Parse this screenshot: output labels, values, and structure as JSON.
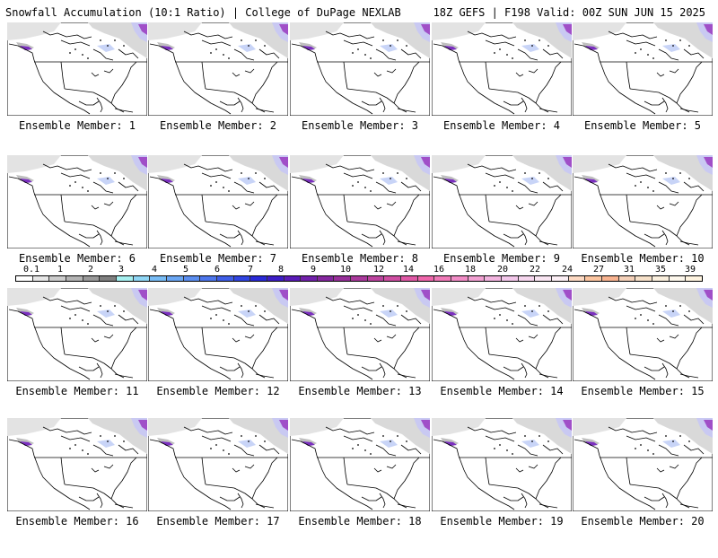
{
  "header": {
    "left_text": "Snowfall Accumulation (10:1 Ratio) | College of DuPage NEXLAB",
    "right_text": "18Z GEFS | F198 Valid: 00Z SUN JUN 15 2025"
  },
  "panels": [
    {
      "label": "Ensemble Member: 1"
    },
    {
      "label": "Ensemble Member: 2"
    },
    {
      "label": "Ensemble Member: 3"
    },
    {
      "label": "Ensemble Member: 4"
    },
    {
      "label": "Ensemble Member: 5"
    },
    {
      "label": "Ensemble Member: 6"
    },
    {
      "label": "Ensemble Member: 7"
    },
    {
      "label": "Ensemble Member: 8"
    },
    {
      "label": "Ensemble Member: 9"
    },
    {
      "label": "Ensemble Member: 10"
    },
    {
      "label": "Ensemble Member: 11"
    },
    {
      "label": "Ensemble Member: 12"
    },
    {
      "label": "Ensemble Member: 13"
    },
    {
      "label": "Ensemble Member: 14"
    },
    {
      "label": "Ensemble Member: 15"
    },
    {
      "label": "Ensemble Member: 16"
    },
    {
      "label": "Ensemble Member: 17"
    },
    {
      "label": "Ensemble Member: 18"
    },
    {
      "label": "Ensemble Member: 19"
    },
    {
      "label": "Ensemble Member: 20"
    }
  ],
  "colorbar": {
    "labels": [
      "0.1",
      "1",
      "2",
      "3",
      "4",
      "5",
      "6",
      "7",
      "8",
      "9",
      "10",
      "12",
      "14",
      "16",
      "18",
      "20",
      "22",
      "24",
      "27",
      "31",
      "35",
      "39"
    ],
    "colors": [
      "#ffffff",
      "#e6e6e6",
      "#cccccc",
      "#b3b3b3",
      "#999999",
      "#7f7f7f",
      "#a6f0f0",
      "#8fd6f5",
      "#78bcf5",
      "#6aa6f3",
      "#5b8ef0",
      "#4d76ec",
      "#3f5ee8",
      "#3145e2",
      "#2a2ad8",
      "#3d1ec7",
      "#5a1bb8",
      "#7221ab",
      "#85279f",
      "#98309a",
      "#aa3a9c",
      "#bd449f",
      "#cf4ea2",
      "#e059a6",
      "#ef66ab",
      "#f07ab8",
      "#f18cc6",
      "#f2a0d2",
      "#f2b4df",
      "#f3c7ea",
      "#f6d6ee",
      "#f9e5f2",
      "#fceff5",
      "#fdd9c2",
      "#fcc5a0",
      "#f8b390",
      "#f4d0b8",
      "#f6e0c8",
      "#faefdd",
      "#fdf7ec",
      "#fff4e0"
    ]
  }
}
